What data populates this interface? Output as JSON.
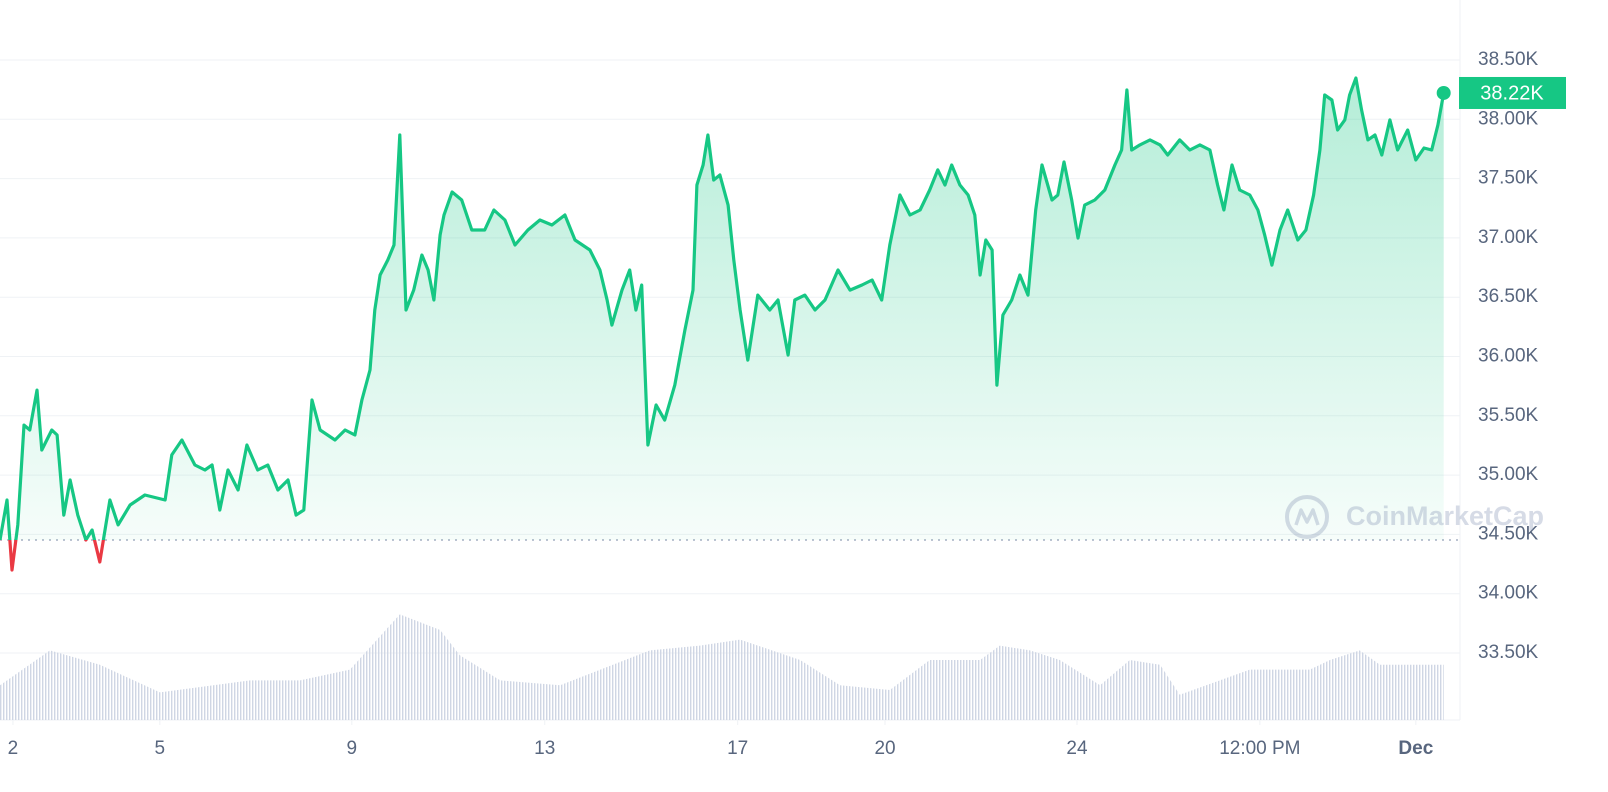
{
  "chart_data": {
    "type": "line",
    "x": [
      1.73,
      1.875,
      1.98,
      2.1,
      2.23,
      2.35,
      2.5,
      2.6,
      2.81,
      2.92,
      3.06,
      3.19,
      3.35,
      3.52,
      3.65,
      3.81,
      4.02,
      4.19,
      4.44,
      4.75,
      5.17,
      5.31,
      5.52,
      5.79,
      6.0,
      6.15,
      6.31,
      6.48,
      6.69,
      6.875,
      7.1,
      7.31,
      7.52,
      7.73,
      7.9,
      8.06,
      8.23,
      8.4,
      8.71,
      8.92,
      9.125,
      9.27,
      9.44,
      9.54,
      9.65,
      9.81,
      9.94,
      10.06,
      10.19,
      10.35,
      10.52,
      10.65,
      10.77,
      10.9,
      10.98,
      11.15,
      11.35,
      11.56,
      11.83,
      12.02,
      12.25,
      12.46,
      12.73,
      12.98,
      13.23,
      13.5,
      13.71,
      14.02,
      14.23,
      14.38,
      14.48,
      14.69,
      14.85,
      14.98,
      15.1,
      15.23,
      15.4,
      15.58,
      15.79,
      16.0,
      16.17,
      16.25,
      16.38,
      16.48,
      16.6,
      16.73,
      16.9,
      17.02,
      17.15,
      17.31,
      17.52,
      17.77,
      17.94,
      18.15,
      18.29,
      18.5,
      18.71,
      18.92,
      19.19,
      19.44,
      19.69,
      19.9,
      20.1,
      20.27,
      20.48,
      20.69,
      20.9,
      21.1,
      21.27,
      21.42,
      21.56,
      21.73,
      21.9,
      22.04,
      22.15,
      22.27,
      22.4,
      22.5,
      22.625,
      22.81,
      22.98,
      23.15,
      23.31,
      23.44,
      23.65,
      23.77,
      23.9,
      24.06,
      24.19,
      24.33,
      24.54,
      24.75,
      24.96,
      25.1,
      25.21,
      25.31,
      25.48,
      25.69,
      25.9,
      26.06,
      26.31,
      26.52,
      26.73,
      26.94,
      27.1,
      27.23,
      27.4,
      27.56,
      27.77,
      27.94,
      28.08,
      28.23,
      28.4,
      28.56,
      28.77,
      28.94,
      29.1,
      29.23,
      29.33,
      29.48,
      29.6,
      29.75,
      29.85,
      29.98,
      30.1,
      30.23,
      30.38,
      30.52,
      30.69,
      30.85,
      31.06,
      31.23,
      31.4,
      31.56,
      31.69,
      31.81
    ],
    "series": [
      {
        "color": "#16c784",
        "down_color": "#ea3943",
        "values": [
          34453,
          34790,
          34200,
          34580,
          35422,
          35380,
          35717,
          35212,
          35380,
          35338,
          34663,
          34959,
          34663,
          34453,
          34537,
          34267,
          34790,
          34580,
          34748,
          34832,
          34790,
          35170,
          35296,
          35085,
          35043,
          35085,
          34706,
          35043,
          34874,
          35254,
          35043,
          35085,
          34874,
          34959,
          34663,
          34706,
          35633,
          35380,
          35296,
          35380,
          35338,
          35633,
          35886,
          36392,
          36687,
          36814,
          36940,
          37868,
          36392,
          36560,
          36856,
          36729,
          36476,
          37024,
          37193,
          37387,
          37320,
          37067,
          37067,
          37235,
          37151,
          36940,
          37067,
          37151,
          37109,
          37193,
          36982,
          36898,
          36729,
          36476,
          36265,
          36560,
          36729,
          36392,
          36603,
          35254,
          35591,
          35464,
          35759,
          36223,
          36560,
          37446,
          37615,
          37868,
          37488,
          37530,
          37277,
          36814,
          36392,
          35970,
          36518,
          36392,
          36476,
          36012,
          36476,
          36518,
          36392,
          36476,
          36729,
          36560,
          36603,
          36645,
          36476,
          36940,
          37362,
          37193,
          37235,
          37404,
          37573,
          37446,
          37615,
          37446,
          37362,
          37193,
          36687,
          36982,
          36898,
          35759,
          36350,
          36476,
          36687,
          36518,
          37235,
          37615,
          37320,
          37362,
          37640,
          37320,
          36999,
          37277,
          37320,
          37404,
          37615,
          37741,
          38247,
          37741,
          37784,
          37826,
          37784,
          37699,
          37826,
          37741,
          37784,
          37741,
          37446,
          37235,
          37615,
          37404,
          37362,
          37235,
          37024,
          36771,
          37067,
          37235,
          36982,
          37067,
          37362,
          37741,
          38205,
          38163,
          37910,
          37995,
          38205,
          38348,
          38078,
          37826,
          37868,
          37699,
          37995,
          37741,
          37910,
          37657,
          37758,
          37741,
          37952,
          38222
        ]
      }
    ],
    "baseline": 34453,
    "current_price": {
      "value": 38222,
      "label": "38.22K"
    },
    "xlim": [
      1.73,
      32.15
    ],
    "ylim": [
      32935,
      39006
    ],
    "xticks": [
      {
        "value": 2.0,
        "label": "2"
      },
      {
        "value": 5.06,
        "label": "5"
      },
      {
        "value": 9.06,
        "label": "9"
      },
      {
        "value": 13.08,
        "label": "13"
      },
      {
        "value": 17.1,
        "label": "17"
      },
      {
        "value": 20.17,
        "label": "20"
      },
      {
        "value": 24.17,
        "label": "24"
      },
      {
        "value": 27.98,
        "label": "12:00 PM"
      },
      {
        "value": 31.23,
        "label": "Dec"
      }
    ],
    "yticks": [
      {
        "value": 33500,
        "label": "33.50K"
      },
      {
        "value": 34000,
        "label": "34.00K"
      },
      {
        "value": 34500,
        "label": "34.50K"
      },
      {
        "value": 35000,
        "label": "35.00K"
      },
      {
        "value": 35500,
        "label": "35.50K"
      },
      {
        "value": 36000,
        "label": "36.00K"
      },
      {
        "value": 36500,
        "label": "36.50K"
      },
      {
        "value": 37000,
        "label": "37.00K"
      },
      {
        "value": 37500,
        "label": "37.50K"
      },
      {
        "value": 38000,
        "label": "38.00K"
      },
      {
        "value": 38500,
        "label": "38.50K"
      }
    ],
    "grid": true,
    "volume": {
      "color": "#cfd6e4",
      "vlim": [
        0,
        100
      ],
      "x": [
        1.73,
        2.77,
        3.81,
        5.06,
        6.94,
        7.98,
        9.02,
        10.06,
        10.9,
        11.31,
        12.15,
        13.4,
        15.27,
        16.31,
        17.15,
        18.4,
        19.23,
        20.27,
        21.1,
        22.15,
        22.56,
        23.19,
        23.81,
        24.65,
        25.27,
        25.9,
        26.31,
        27.77,
        29.02,
        29.44,
        30.06,
        30.48,
        31.81
      ],
      "values": [
        29,
        58,
        46,
        23,
        33,
        33,
        42,
        88,
        75,
        54,
        33,
        29,
        58,
        62,
        67,
        50,
        29,
        25,
        50,
        50,
        62,
        58,
        50,
        29,
        50,
        46,
        21,
        42,
        42,
        50,
        58,
        46,
        46
      ]
    },
    "watermark": "CoinMarketCap"
  }
}
